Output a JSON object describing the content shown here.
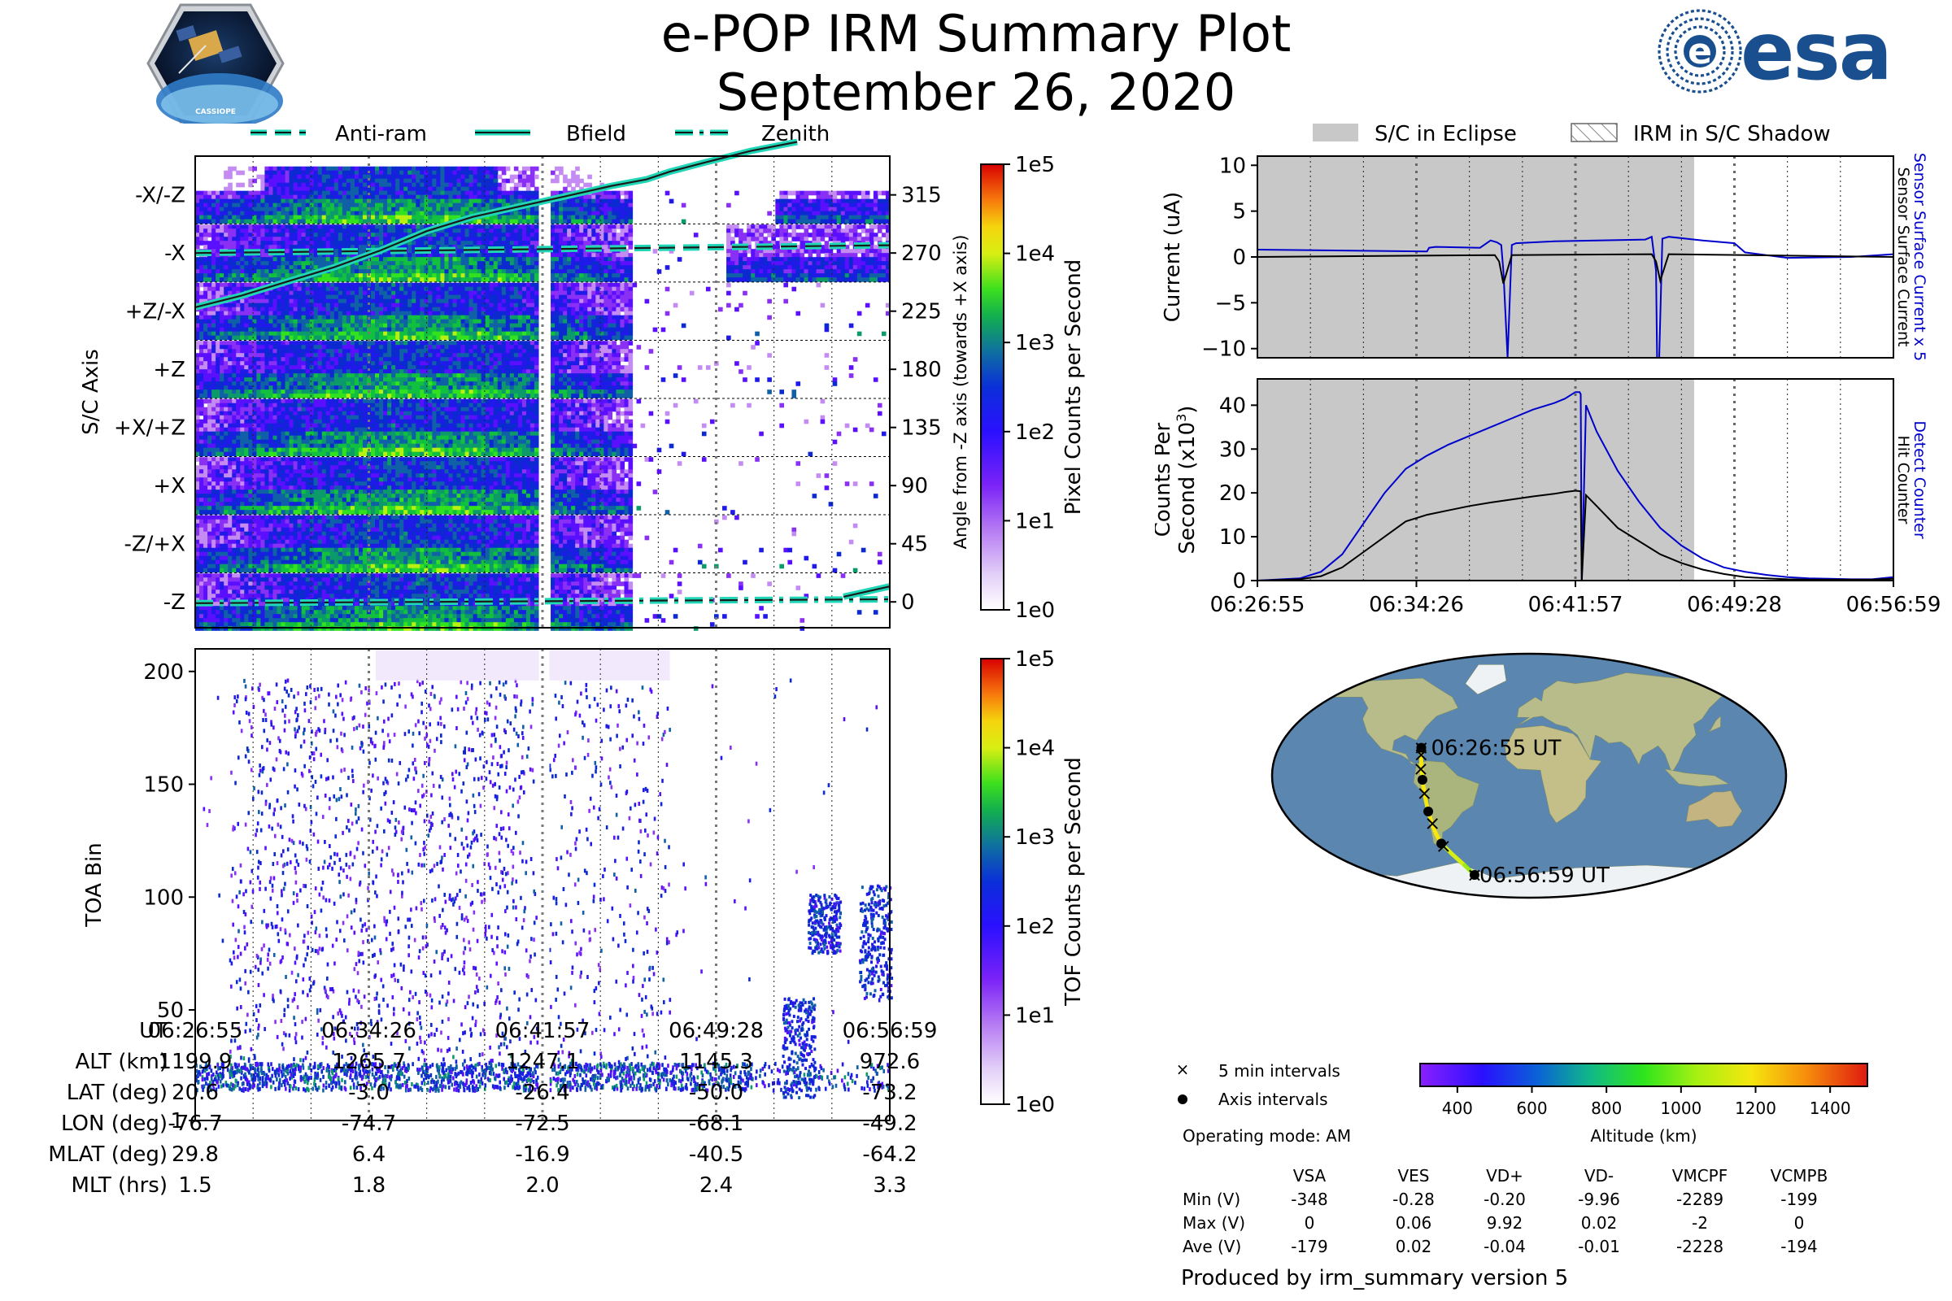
{
  "header": {
    "title": "e-POP IRM Summary Plot",
    "date": "September 26, 2020",
    "mission_badge_text": "CASSIOPE",
    "agency_logo_text": "esa"
  },
  "colors": {
    "spectrogram": [
      "#ffffff",
      "#efe3fb",
      "#c48bf2",
      "#8a30f5",
      "#5a10ff",
      "#1f1ae8",
      "#0b2ad0",
      "#1060a8",
      "#0c9a6a",
      "#12c040",
      "#33e21f",
      "#b8f012",
      "#f3e60f",
      "#f79e0c",
      "#ee3015",
      "#d80000"
    ],
    "bfield": "#1a1a1a",
    "bfield_outline": "#1fd6b6",
    "current_sensor": "#0000cc",
    "current_surface": "#000000",
    "eclipse": "#c8c8c8"
  },
  "chart_data": [
    {
      "id": "angle",
      "type": "heatmap",
      "ylabel_left": "S/C Axis",
      "ylabel_right": "Angle from -Z axis (towards +X axis)",
      "sc_axis_labels": [
        "-X/-Z",
        "-X",
        "+Z/-X",
        "+Z",
        "+X/+Z",
        "+X",
        "-Z/+X",
        "-Z"
      ],
      "angle_ticks": [
        "315",
        "270",
        "225",
        "180",
        "135",
        "90",
        "45",
        "0"
      ],
      "angle_values": [
        315,
        270,
        225,
        180,
        135,
        90,
        45,
        0
      ],
      "ylim": [
        -20,
        345
      ],
      "legend": [
        {
          "label": "Anti-ram",
          "style": "dashed"
        },
        {
          "label": "Bfield",
          "style": "solid"
        },
        {
          "label": "Zenith",
          "style": "dashdot"
        }
      ],
      "lines": {
        "anti_ram": {
          "x": [
            0,
            30
          ],
          "y": [
            270,
            276
          ]
        },
        "zenith": {
          "x": [
            0,
            30
          ],
          "y": [
            -1,
            2
          ]
        },
        "bfield": {
          "x": [
            0,
            2,
            4,
            6,
            8,
            10,
            12,
            14,
            16,
            18,
            19.5,
            20.5,
            22,
            24,
            26,
            28,
            30
          ],
          "y": [
            228,
            237,
            248,
            259,
            272,
            287,
            298,
            306,
            314,
            322,
            327,
            333,
            340,
            349,
            356,
            4,
            12
          ]
        }
      },
      "colorbar": {
        "label": "Pixel Counts per Second",
        "ticks": [
          "1e5",
          "1e4",
          "1e3",
          "1e2",
          "1e1",
          "1e0"
        ]
      }
    },
    {
      "id": "toa",
      "type": "heatmap",
      "ylabel": "TOA Bin",
      "yticks": [
        "200",
        "150",
        "100",
        "50",
        "1"
      ],
      "ytick_values": [
        200,
        150,
        100,
        50,
        1
      ],
      "ylim": [
        1,
        210
      ],
      "colorbar": {
        "label": "TOF Counts per Second",
        "ticks": [
          "1e5",
          "1e4",
          "1e3",
          "1e2",
          "1e1",
          "1e0"
        ]
      }
    },
    {
      "id": "current",
      "type": "line",
      "ylabel": "Current (uA)",
      "yticks": [
        "10",
        "5",
        "0",
        "−5",
        "−10"
      ],
      "ytick_values": [
        10,
        5,
        0,
        -5,
        -10
      ],
      "ylim": [
        -11,
        11
      ],
      "legend": [
        {
          "label": "S/C in Eclipse"
        },
        {
          "label": "IRM in S/C Shadow"
        }
      ],
      "right_labels": [
        "Sensor Surface Current x 5",
        "Sensor Surface Current"
      ],
      "eclipse_x": [
        0,
        20.6
      ],
      "series": [
        {
          "name": "Sensor Surface Current x 5",
          "x": [
            0,
            8,
            8.1,
            8.4,
            10.5,
            11,
            11.3,
            11.5,
            11.6,
            11.8,
            12,
            12.2,
            14,
            18.3,
            18.6,
            18.8,
            18.85,
            18.95,
            19.1,
            19.4,
            21,
            22.5,
            23,
            25,
            28,
            30
          ],
          "y": [
            0.8,
            0.6,
            1.0,
            1.1,
            1.0,
            1.8,
            1.6,
            1.3,
            -1.5,
            -11,
            1.3,
            1.5,
            1.7,
            1.9,
            2.2,
            -1.5,
            -11,
            -11,
            2.0,
            2.2,
            1.8,
            1.5,
            0.5,
            -0.1,
            0,
            0.3
          ]
        },
        {
          "name": "Sensor Surface Current",
          "x": [
            0,
            11.2,
            11.4,
            11.6,
            12,
            18.6,
            18.8,
            19.0,
            19.4,
            30
          ],
          "y": [
            0,
            0.2,
            -0.5,
            -2.9,
            0.2,
            0.3,
            -0.5,
            -2.6,
            0.3,
            0
          ]
        }
      ]
    },
    {
      "id": "counts",
      "type": "line",
      "ylabel": "Counts Per Second (x10³)",
      "ylabel_line1": "Counts Per",
      "ylabel_line2": "Second (x10",
      "ylabel_sup": "3",
      "ylabel_end": ")",
      "yticks": [
        "40",
        "30",
        "20",
        "10",
        "0"
      ],
      "ytick_values": [
        40,
        30,
        20,
        10,
        0
      ],
      "ylim": [
        0,
        46
      ],
      "right_labels": [
        "Detect Counter",
        "Hit Counter"
      ],
      "eclipse_x": [
        0,
        20.6
      ],
      "xticks": [
        "06:26:55",
        "06:34:26",
        "06:41:57",
        "06:49:28",
        "06:56:59"
      ],
      "xtick_values": [
        0,
        7.5,
        15,
        22.5,
        30
      ],
      "series": [
        {
          "name": "Detect Counter",
          "x": [
            0,
            2,
            3,
            4,
            5,
            6,
            7,
            8,
            9,
            10,
            11,
            12,
            13,
            14,
            14.5,
            15,
            15.2,
            15.25,
            15.3,
            15.5,
            16,
            17,
            18,
            19,
            20,
            21,
            22,
            23,
            24,
            25,
            26,
            27,
            28,
            29,
            30
          ],
          "y": [
            0,
            0.5,
            2,
            6,
            13,
            20,
            25.5,
            28.5,
            31,
            33,
            35,
            37,
            39,
            40.5,
            41.5,
            43,
            43,
            42.5,
            0,
            40,
            34,
            25,
            18,
            12,
            8,
            5,
            3,
            2,
            1.3,
            0.8,
            0.5,
            0.4,
            0.3,
            0.3,
            0.8
          ]
        },
        {
          "name": "Hit Counter",
          "x": [
            0,
            2,
            3,
            4,
            5,
            6,
            7,
            8,
            9,
            10,
            11,
            12,
            13,
            14,
            14.5,
            15,
            15.2,
            15.25,
            15.3,
            15.5,
            16,
            17,
            18,
            19,
            20,
            21,
            22,
            23,
            24,
            25,
            26,
            27,
            28,
            29,
            30
          ],
          "y": [
            0,
            0.3,
            1,
            3,
            6.5,
            10,
            13.5,
            15,
            16,
            17,
            17.8,
            18.5,
            19.2,
            19.8,
            20.2,
            20.5,
            20.4,
            20.3,
            0,
            19.5,
            17,
            12,
            9,
            6,
            4,
            2.5,
            1.5,
            0.8,
            0.5,
            0.3,
            0.2,
            0.2,
            0.2,
            0.2,
            0.4
          ]
        }
      ]
    },
    {
      "id": "map",
      "type": "scatter",
      "projection": "Robinson",
      "xlim": [
        -180,
        180
      ],
      "ylim": [
        -90,
        90
      ],
      "track": {
        "lon": [
          -76.7,
          -76.2,
          -75.7,
          -74.7,
          -73.6,
          -72.5,
          -71.3,
          -70.1,
          -68.1,
          -62.0,
          -55.0,
          -49.2
        ],
        "lat": [
          20.6,
          14.6,
          8.8,
          -3.0,
          -14.7,
          -26.4,
          -36.2,
          -43.0,
          -50.0,
          -58.0,
          -66.0,
          -73.2
        ],
        "alt": [
          1199.9,
          1230,
          1250,
          1265.7,
          1258,
          1247.1,
          1220,
          1185,
          1145.3,
          1100,
          1030,
          972.6
        ]
      },
      "five_min_points": {
        "lon": [
          -76.7,
          -76.3,
          -75.9,
          -73.8,
          -71.0,
          -67.0,
          -49.2
        ],
        "lat": [
          20.6,
          15.5,
          5.0,
          -13.0,
          -35.0,
          -52.0,
          -73.2
        ]
      },
      "axis_points": {
        "lon": [
          -76.7,
          -74.7,
          -72.5,
          -68.1,
          -49.2
        ],
        "lat": [
          20.6,
          -3.0,
          -26.4,
          -50.0,
          -73.2
        ]
      },
      "start_label": "06:26:55 UT",
      "end_label": "06:56:59 UT",
      "legend": [
        "5 min intervals",
        "Axis intervals"
      ],
      "operating_mode": "Operating mode: AM",
      "altitude_colorbar": {
        "label": "Altitude (km)",
        "ticks": [
          "400",
          "600",
          "800",
          "1000",
          "1200",
          "1400"
        ],
        "tick_values": [
          400,
          600,
          800,
          1000,
          1200,
          1400
        ],
        "range": [
          300,
          1500
        ]
      }
    }
  ],
  "ut_table": {
    "row_labels": [
      "UT",
      "ALT (km)",
      "LAT (deg)",
      "LON (deg)",
      "MLAT (deg)",
      "MLT (hrs)"
    ],
    "columns": [
      [
        "06:26:55",
        "1199.9",
        "20.6",
        "-76.7",
        "29.8",
        "1.5"
      ],
      [
        "06:34:26",
        "1265.7",
        "-3.0",
        "-74.7",
        "6.4",
        "1.8"
      ],
      [
        "06:41:57",
        "1247.1",
        "-26.4",
        "-72.5",
        "-16.9",
        "2.0"
      ],
      [
        "06:49:28",
        "1145.3",
        "-50.0",
        "-68.1",
        "-40.5",
        "2.4"
      ],
      [
        "06:56:59",
        "972.6",
        "-73.2",
        "-49.2",
        "-64.2",
        "3.3"
      ]
    ]
  },
  "voltage_table": {
    "headers": [
      "VSA",
      "VES",
      "VD+",
      "VD-",
      "VMCPF",
      "VCMPB"
    ],
    "rows": [
      {
        "label": "Min (V)",
        "values": [
          "-348",
          "-0.28",
          "-0.20",
          "-9.96",
          "-2289",
          "-199"
        ]
      },
      {
        "label": "Max (V)",
        "values": [
          "0",
          "0.06",
          "9.92",
          "0.02",
          "-2",
          "0"
        ]
      },
      {
        "label": "Ave (V)",
        "values": [
          "-179",
          "0.02",
          "-0.04",
          "-0.01",
          "-2228",
          "-194"
        ]
      }
    ]
  },
  "footer": "Produced by irm_summary version 5"
}
